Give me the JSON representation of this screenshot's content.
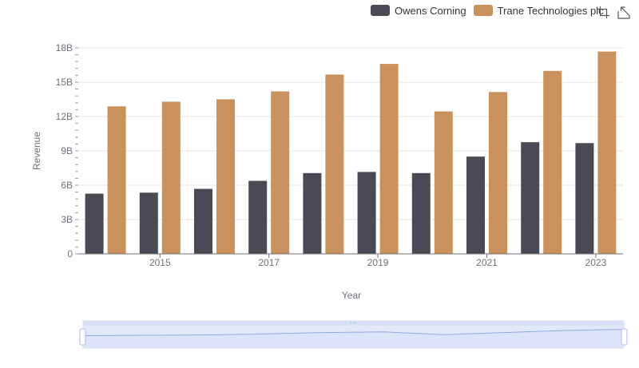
{
  "legend": {
    "items": [
      {
        "label": "Owens Corning",
        "color": "#4a4a55"
      },
      {
        "label": "Trane Technologies plc",
        "color": "#c9915c"
      }
    ]
  },
  "toolbox": {
    "icons": [
      "zoom-icon",
      "restore-icon"
    ]
  },
  "colors": {
    "grid": "#e6e6e6",
    "axis": "#6e7079",
    "slider_fill": "#dde6fa",
    "slider_border": "#aebee8",
    "slider_line": "#8fa9e0"
  },
  "chart_data": {
    "type": "bar",
    "title": "",
    "xlabel": "Year",
    "ylabel": "Revenue",
    "categories": [
      "2014",
      "2015",
      "2016",
      "2017",
      "2018",
      "2019",
      "2020",
      "2021",
      "2022",
      "2023"
    ],
    "x_tick_labels": [
      "2015",
      "2017",
      "2019",
      "2021",
      "2023"
    ],
    "y_tick_labels": [
      "0",
      "3B",
      "6B",
      "9B",
      "12B",
      "15B",
      "18B"
    ],
    "ylim": [
      0,
      18
    ],
    "y_unit": "B",
    "grid": true,
    "legend_position": "top-right",
    "series": [
      {
        "name": "Owens Corning",
        "values": [
          5.26,
          5.35,
          5.68,
          6.38,
          7.06,
          7.16,
          7.06,
          8.5,
          9.76,
          9.68
        ]
      },
      {
        "name": "Trane Technologies plc",
        "values": [
          12.89,
          13.3,
          13.51,
          14.2,
          15.67,
          16.6,
          12.45,
          14.14,
          15.99,
          17.68
        ]
      }
    ],
    "data_zoom": {
      "start": 0,
      "end": 100
    }
  }
}
